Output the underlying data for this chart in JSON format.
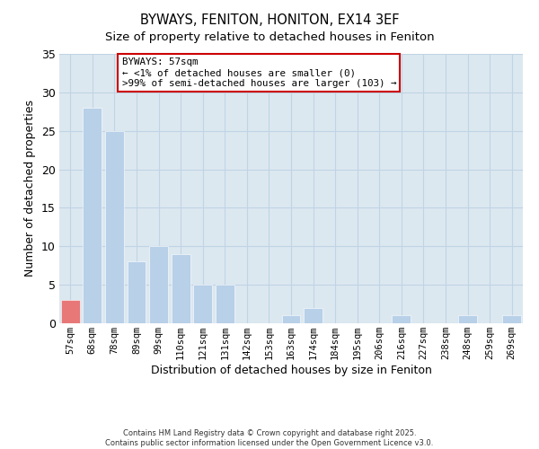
{
  "title": "BYWAYS, FENITON, HONITON, EX14 3EF",
  "subtitle": "Size of property relative to detached houses in Feniton",
  "xlabel": "Distribution of detached houses by size in Feniton",
  "ylabel": "Number of detached properties",
  "categories": [
    "57sqm",
    "68sqm",
    "78sqm",
    "89sqm",
    "99sqm",
    "110sqm",
    "121sqm",
    "131sqm",
    "142sqm",
    "153sqm",
    "163sqm",
    "174sqm",
    "184sqm",
    "195sqm",
    "206sqm",
    "216sqm",
    "227sqm",
    "238sqm",
    "248sqm",
    "259sqm",
    "269sqm"
  ],
  "values": [
    3,
    28,
    25,
    8,
    10,
    9,
    5,
    5,
    0,
    0,
    1,
    2,
    0,
    0,
    0,
    1,
    0,
    0,
    1,
    0,
    1
  ],
  "highlight_index": 0,
  "bar_color": "#b8d0e8",
  "highlight_color": "#e87878",
  "ylim": [
    0,
    35
  ],
  "yticks": [
    0,
    5,
    10,
    15,
    20,
    25,
    30,
    35
  ],
  "annotation_title": "BYWAYS: 57sqm",
  "annotation_line1": "← <1% of detached houses are smaller (0)",
  "annotation_line2": ">99% of semi-detached houses are larger (103) →",
  "footnote1": "Contains HM Land Registry data © Crown copyright and database right 2025.",
  "footnote2": "Contains public sector information licensed under the Open Government Licence v3.0.",
  "background_color": "#ffffff",
  "plot_bg_color": "#dce8f0",
  "grid_color": "#c0d4e4",
  "annotation_box_color": "#cc0000",
  "title_fontsize": 10.5,
  "subtitle_fontsize": 9.5
}
